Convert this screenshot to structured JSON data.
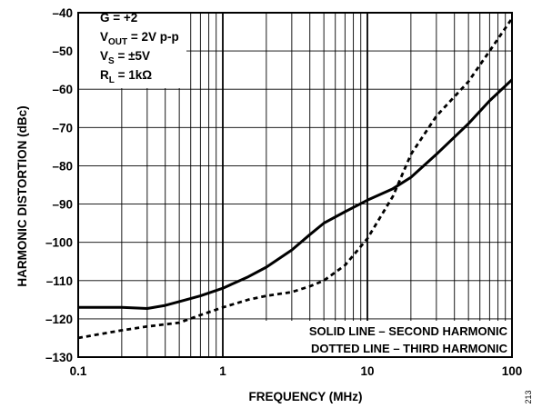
{
  "chart_data": {
    "type": "line",
    "xlabel": "FREQUENCY (MHz)",
    "ylabel": "HARMONIC DISTORTION (dBc)",
    "x_scale": "log",
    "xlim": [
      0.1,
      100
    ],
    "ylim": [
      -130,
      -40
    ],
    "grid": true,
    "x_ticks": [
      "0.1",
      "1",
      "10",
      "100"
    ],
    "y_ticks": [
      "–40",
      "–50",
      "–60",
      "–70",
      "–80",
      "–90",
      "–100",
      "–110",
      "–120",
      "–130"
    ],
    "conditions": [
      {
        "base": "G = +2",
        "sub": "",
        "rest": ""
      },
      {
        "base": "V",
        "sub": "OUT",
        "rest": " = 2V p-p"
      },
      {
        "base": "V",
        "sub": "S",
        "rest": " = ±5V"
      },
      {
        "base": "R",
        "sub": "L",
        "rest": " = 1kΩ"
      }
    ],
    "legend": {
      "position": "bottom-right",
      "line1": "SOLID LINE – SECOND HARMONIC",
      "line2": "DOTTED LINE – THIRD HARMONIC"
    },
    "figure_id": "213",
    "series": [
      {
        "style": "solid",
        "x": [
          0.1,
          0.2,
          0.3,
          0.4,
          0.5,
          0.7,
          1,
          1.5,
          2,
          3,
          4,
          5,
          7,
          10,
          15,
          20,
          30,
          50,
          70,
          100
        ],
        "y": [
          -117,
          -117,
          -117.3,
          -116.5,
          -115.5,
          -114,
          -112,
          -109,
          -106.5,
          -102,
          -98,
          -95,
          -92,
          -89,
          -86,
          -83,
          -77,
          -69,
          -63,
          -57.5
        ]
      },
      {
        "style": "dotted",
        "x": [
          0.1,
          0.2,
          0.3,
          0.5,
          0.7,
          1,
          1.5,
          2,
          3,
          4,
          5,
          7,
          10,
          15,
          20,
          30,
          50,
          70,
          100
        ],
        "y": [
          -125,
          -123,
          -122,
          -121,
          -119,
          -117,
          -115,
          -114,
          -113,
          -111.5,
          -110,
          -106,
          -99,
          -88,
          -77,
          -67,
          -58,
          -50,
          -41.5
        ]
      }
    ]
  }
}
